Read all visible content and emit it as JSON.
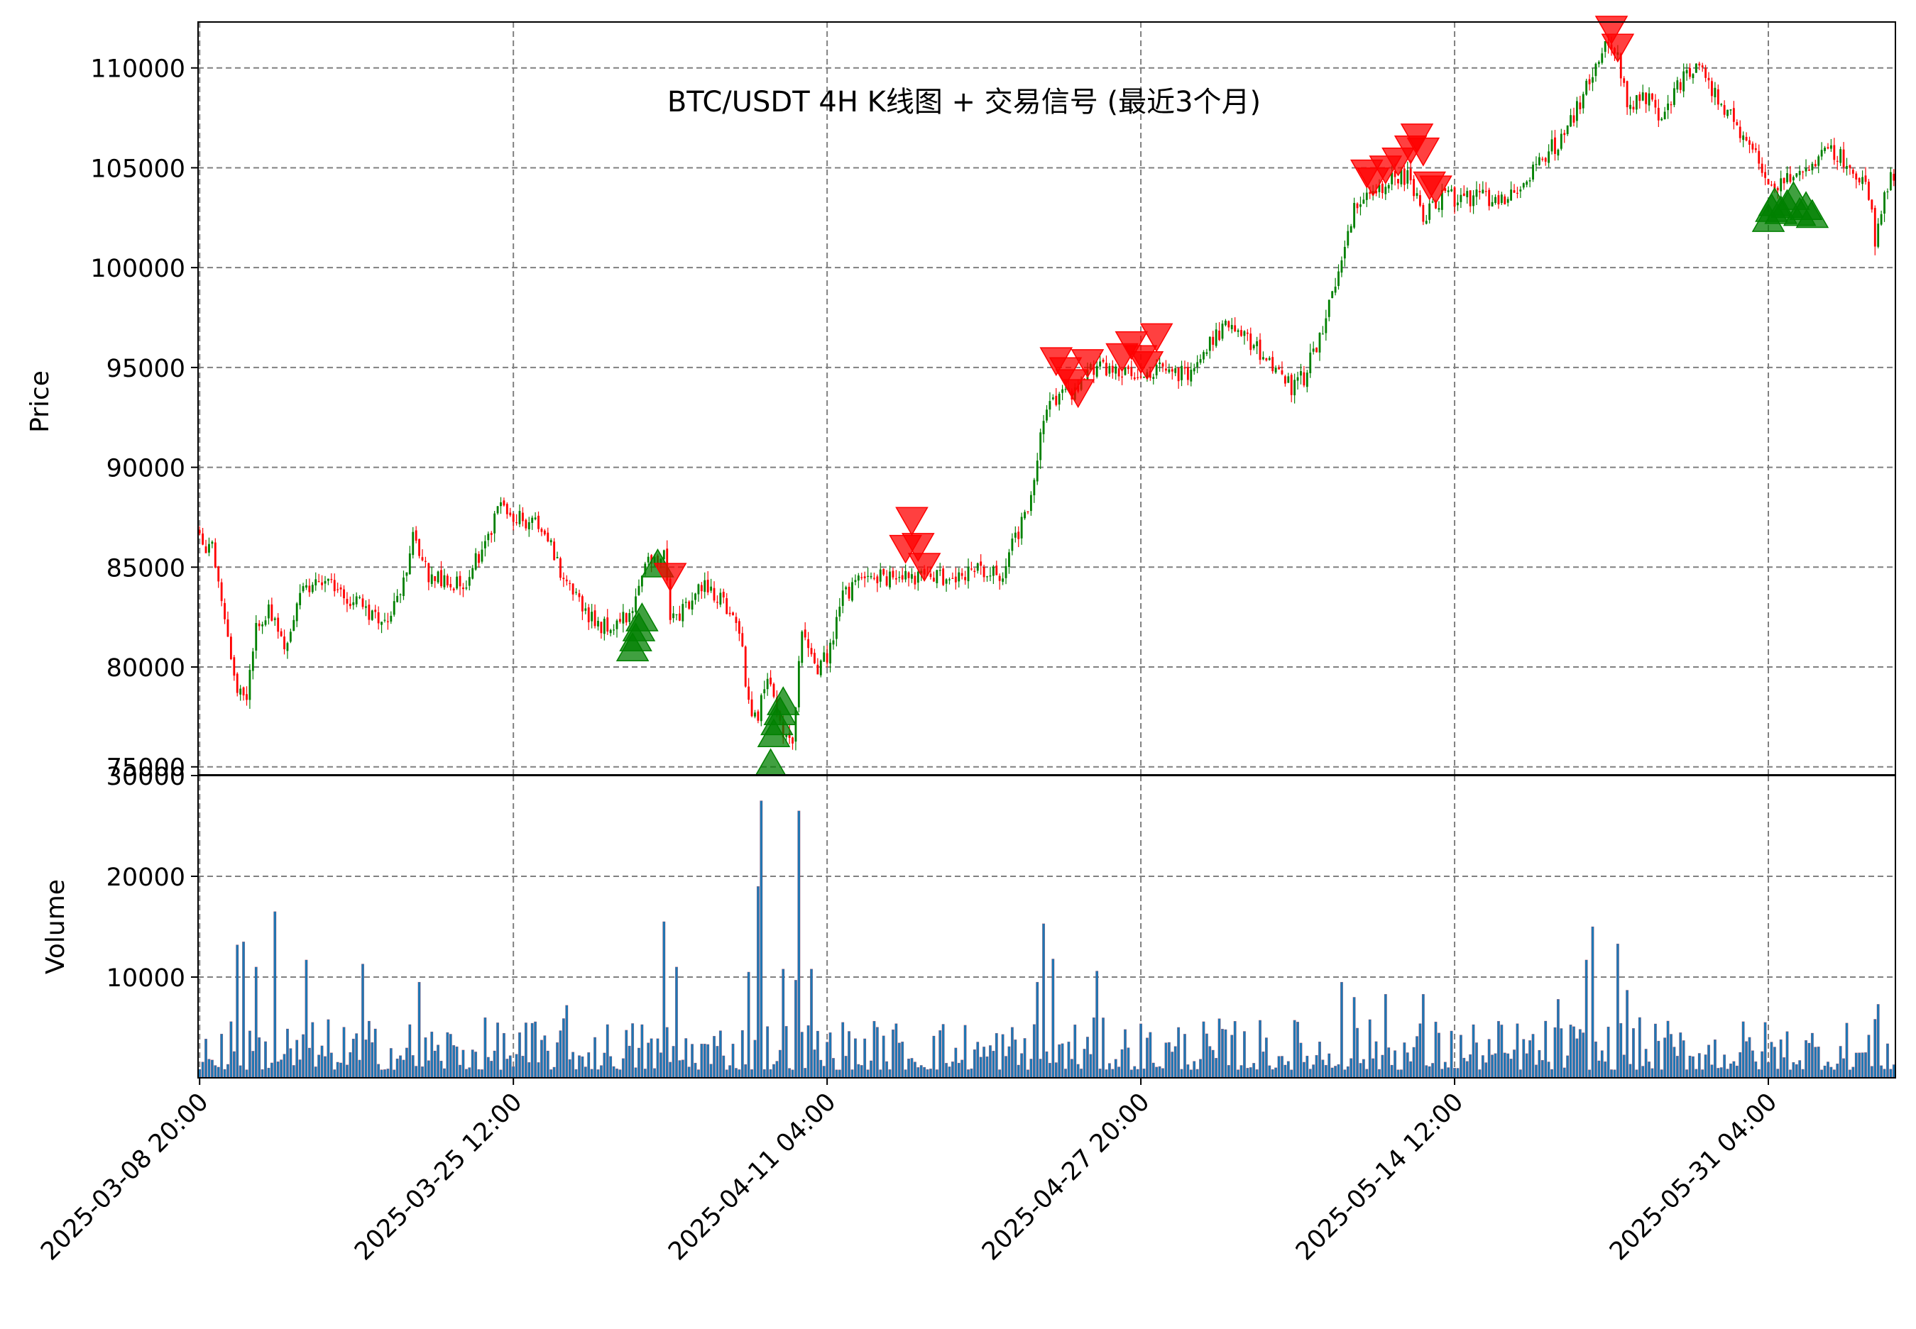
{
  "chart_data": {
    "type": "candlestick",
    "title": "BTC/USDT 4H K线图 + 交易信号 (最近3个月)",
    "panels": {
      "price": {
        "ylabel": "Price",
        "ylim": [
          74600,
          112300
        ],
        "yticks": [
          75000,
          80000,
          85000,
          90000,
          95000,
          100000,
          105000,
          110000
        ]
      },
      "volume": {
        "ylabel": "Volume",
        "ylim": [
          0,
          30000
        ],
        "yticks": [
          10000,
          20000,
          30000
        ]
      }
    },
    "x_axis": {
      "start": "2025-03-08 20:00",
      "end": "2025-06-06 20:00",
      "interval_hours": 4,
      "tick_labels": [
        "2025-03-08 20:00",
        "2025-03-25 12:00",
        "2025-04-11 04:00",
        "2025-04-27 20:00",
        "2025-05-14 12:00",
        "2025-05-31 04:00"
      ]
    },
    "grid": true,
    "colors": {
      "up": "#008000",
      "down": "#ff0000",
      "buy": "#008000",
      "sell": "#ff0000",
      "volume": "#1f77b4",
      "grid": "#808080"
    },
    "price_waypoints": [
      [
        "2025-03-08 20:00",
        86300
      ],
      [
        "2025-03-09 12:00",
        86000
      ],
      [
        "2025-03-10 04:00",
        82000
      ],
      [
        "2025-03-10 20:00",
        79000
      ],
      [
        "2025-03-11 08:00",
        78500
      ],
      [
        "2025-03-11 20:00",
        82000
      ],
      [
        "2025-03-12 12:00",
        83000
      ],
      [
        "2025-03-13 08:00",
        81000
      ],
      [
        "2025-03-14 08:00",
        84000
      ],
      [
        "2025-03-15 20:00",
        84000
      ],
      [
        "2025-03-17 12:00",
        83000
      ],
      [
        "2025-03-18 12:00",
        82000
      ],
      [
        "2025-03-19 20:00",
        84500
      ],
      [
        "2025-03-20 04:00",
        86500
      ],
      [
        "2025-03-21 00:00",
        84500
      ],
      [
        "2025-03-22 20:00",
        84000
      ],
      [
        "2025-03-24 04:00",
        86500
      ],
      [
        "2025-03-24 16:00",
        88000
      ],
      [
        "2025-03-25 12:00",
        87500
      ],
      [
        "2025-03-27 00:00",
        87000
      ],
      [
        "2025-03-28 04:00",
        84500
      ],
      [
        "2025-03-29 08:00",
        82500
      ],
      [
        "2025-03-30 12:00",
        82000
      ],
      [
        "2025-03-31 20:00",
        82500
      ],
      [
        "2025-04-01 12:00",
        85000
      ],
      [
        "2025-04-02 12:00",
        85500
      ],
      [
        "2025-04-02 20:00",
        82500
      ],
      [
        "2025-04-03 20:00",
        83000
      ],
      [
        "2025-04-04 12:00",
        84000
      ],
      [
        "2025-04-05 12:00",
        83500
      ],
      [
        "2025-04-06 12:00",
        82000
      ],
      [
        "2025-04-07 00:00",
        78000
      ],
      [
        "2025-04-07 12:00",
        77500
      ],
      [
        "2025-04-08 00:00",
        79500
      ],
      [
        "2025-04-08 16:00",
        77000
      ],
      [
        "2025-04-09 08:00",
        76500
      ],
      [
        "2025-04-09 20:00",
        82000
      ],
      [
        "2025-04-10 16:00",
        80000
      ],
      [
        "2025-04-11 04:00",
        80500
      ],
      [
        "2025-04-12 00:00",
        83500
      ],
      [
        "2025-04-13 04:00",
        84500
      ],
      [
        "2025-04-14 12:00",
        84500
      ],
      [
        "2025-04-16 04:00",
        84500
      ],
      [
        "2025-04-17 12:00",
        84500
      ],
      [
        "2025-04-19 00:00",
        84800
      ],
      [
        "2025-04-20 12:00",
        84500
      ],
      [
        "2025-04-21 04:00",
        86500
      ],
      [
        "2025-04-21 20:00",
        87800
      ],
      [
        "2025-04-22 12:00",
        91500
      ],
      [
        "2025-04-23 04:00",
        93500
      ],
      [
        "2025-04-24 00:00",
        93500
      ],
      [
        "2025-04-25 00:00",
        94800
      ],
      [
        "2025-04-26 12:00",
        95000
      ],
      [
        "2025-04-27 20:00",
        94500
      ],
      [
        "2025-04-29 08:00",
        95000
      ],
      [
        "2025-04-30 08:00",
        94500
      ],
      [
        "2025-05-01 08:00",
        96000
      ],
      [
        "2025-05-02 04:00",
        97000
      ],
      [
        "2025-05-03 12:00",
        96500
      ],
      [
        "2025-05-04 20:00",
        95000
      ],
      [
        "2025-05-05 20:00",
        94000
      ],
      [
        "2025-05-06 12:00",
        94500
      ],
      [
        "2025-05-07 12:00",
        97000
      ],
      [
        "2025-05-08 12:00",
        100500
      ],
      [
        "2025-05-09 04:00",
        103000
      ],
      [
        "2025-05-10 08:00",
        104000
      ],
      [
        "2025-05-11 08:00",
        104500
      ],
      [
        "2025-05-12 04:00",
        104500
      ],
      [
        "2025-05-12 20:00",
        102500
      ],
      [
        "2025-05-13 20:00",
        103500
      ],
      [
        "2025-05-15 08:00",
        103500
      ],
      [
        "2025-05-16 20:00",
        103500
      ],
      [
        "2025-05-18 00:00",
        103500
      ],
      [
        "2025-05-19 00:00",
        105500
      ],
      [
        "2025-05-20 08:00",
        106500
      ],
      [
        "2025-05-21 12:00",
        109000
      ],
      [
        "2025-05-22 08:00",
        111000
      ],
      [
        "2025-05-23 04:00",
        110500
      ],
      [
        "2025-05-23 16:00",
        108000
      ],
      [
        "2025-05-24 20:00",
        108500
      ],
      [
        "2025-05-25 12:00",
        107500
      ],
      [
        "2025-05-26 16:00",
        109500
      ],
      [
        "2025-05-27 12:00",
        110000
      ],
      [
        "2025-05-28 12:00",
        108500
      ],
      [
        "2025-05-29 12:00",
        107000
      ],
      [
        "2025-05-30 12:00",
        105500
      ],
      [
        "2025-05-31 04:00",
        104000
      ],
      [
        "2025-06-01 12:00",
        104500
      ],
      [
        "2025-06-02 20:00",
        105500
      ],
      [
        "2025-06-03 12:00",
        106000
      ],
      [
        "2025-06-04 12:00",
        105000
      ],
      [
        "2025-06-05 08:00",
        104500
      ],
      [
        "2025-06-05 20:00",
        101500
      ],
      [
        "2025-06-06 12:00",
        104000
      ],
      [
        "2025-06-06 20:00",
        104800
      ]
    ],
    "volume_spikes": [
      [
        "2025-03-10 20:00",
        13200
      ],
      [
        "2025-03-11 04:00",
        13500
      ],
      [
        "2025-03-11 20:00",
        11000
      ],
      [
        "2025-03-12 20:00",
        16500
      ],
      [
        "2025-03-14 12:00",
        11700
      ],
      [
        "2025-03-17 12:00",
        11300
      ],
      [
        "2025-03-20 12:00",
        9500
      ],
      [
        "2025-03-28 08:00",
        7200
      ],
      [
        "2025-04-02 12:00",
        15500
      ],
      [
        "2025-04-03 04:00",
        11000
      ],
      [
        "2025-04-07 00:00",
        10500
      ],
      [
        "2025-04-07 12:00",
        19000
      ],
      [
        "2025-04-07 16:00",
        27500
      ],
      [
        "2025-04-08 20:00",
        10800
      ],
      [
        "2025-04-09 12:00",
        9700
      ],
      [
        "2025-04-09 16:00",
        26500
      ],
      [
        "2025-04-10 08:00",
        10800
      ],
      [
        "2025-04-22 08:00",
        9500
      ],
      [
        "2025-04-22 16:00",
        15300
      ],
      [
        "2025-04-23 04:00",
        11800
      ],
      [
        "2025-04-25 12:00",
        10600
      ],
      [
        "2025-05-08 12:00",
        9500
      ],
      [
        "2025-05-09 04:00",
        8000
      ],
      [
        "2025-05-10 20:00",
        8300
      ],
      [
        "2025-05-12 20:00",
        8300
      ],
      [
        "2025-05-20 00:00",
        7800
      ],
      [
        "2025-05-21 12:00",
        11700
      ],
      [
        "2025-05-21 20:00",
        15000
      ],
      [
        "2025-05-23 04:00",
        13300
      ],
      [
        "2025-05-23 16:00",
        8700
      ],
      [
        "2025-06-06 00:00",
        7300
      ]
    ],
    "buy_signals": [
      [
        "2025-03-31 20:00",
        80900
      ],
      [
        "2025-04-01 00:00",
        81400
      ],
      [
        "2025-04-01 04:00",
        81900
      ],
      [
        "2025-04-01 08:00",
        82400
      ],
      [
        "2025-04-02 04:00",
        85100
      ],
      [
        "2025-04-08 04:00",
        75100
      ],
      [
        "2025-04-08 08:00",
        76600
      ],
      [
        "2025-04-08 12:00",
        77200
      ],
      [
        "2025-04-08 16:00",
        77700
      ],
      [
        "2025-04-08 20:00",
        78200
      ],
      [
        "2025-05-31 04:00",
        102400
      ],
      [
        "2025-05-31 08:00",
        102900
      ],
      [
        "2025-05-31 12:00",
        103200
      ],
      [
        "2025-05-31 20:00",
        102800
      ],
      [
        "2025-06-01 04:00",
        103100
      ],
      [
        "2025-06-01 12:00",
        103500
      ],
      [
        "2025-06-01 20:00",
        102700
      ],
      [
        "2025-06-02 04:00",
        103000
      ],
      [
        "2025-06-02 12:00",
        102600
      ]
    ],
    "sell_signals": [
      [
        "2025-04-02 20:00",
        84600
      ],
      [
        "2025-04-15 08:00",
        86000
      ],
      [
        "2025-04-15 16:00",
        87400
      ],
      [
        "2025-04-16 00:00",
        86100
      ],
      [
        "2025-04-16 08:00",
        85100
      ],
      [
        "2025-04-23 08:00",
        95400
      ],
      [
        "2025-04-23 20:00",
        94900
      ],
      [
        "2025-04-24 04:00",
        94300
      ],
      [
        "2025-04-24 12:00",
        93800
      ],
      [
        "2025-04-25 00:00",
        95300
      ],
      [
        "2025-04-26 20:00",
        95600
      ],
      [
        "2025-04-27 08:00",
        96200
      ],
      [
        "2025-04-27 20:00",
        95500
      ],
      [
        "2025-04-28 04:00",
        95200
      ],
      [
        "2025-04-28 16:00",
        96600
      ],
      [
        "2025-05-09 20:00",
        104800
      ],
      [
        "2025-05-10 04:00",
        104400
      ],
      [
        "2025-05-10 20:00",
        105000
      ],
      [
        "2025-05-11 12:00",
        105400
      ],
      [
        "2025-05-12 04:00",
        106000
      ],
      [
        "2025-05-12 12:00",
        106600
      ],
      [
        "2025-05-12 20:00",
        105900
      ],
      [
        "2025-05-13 04:00",
        104200
      ],
      [
        "2025-05-13 12:00",
        104000
      ],
      [
        "2025-05-22 20:00",
        112000
      ],
      [
        "2025-05-23 04:00",
        111100
      ]
    ]
  }
}
